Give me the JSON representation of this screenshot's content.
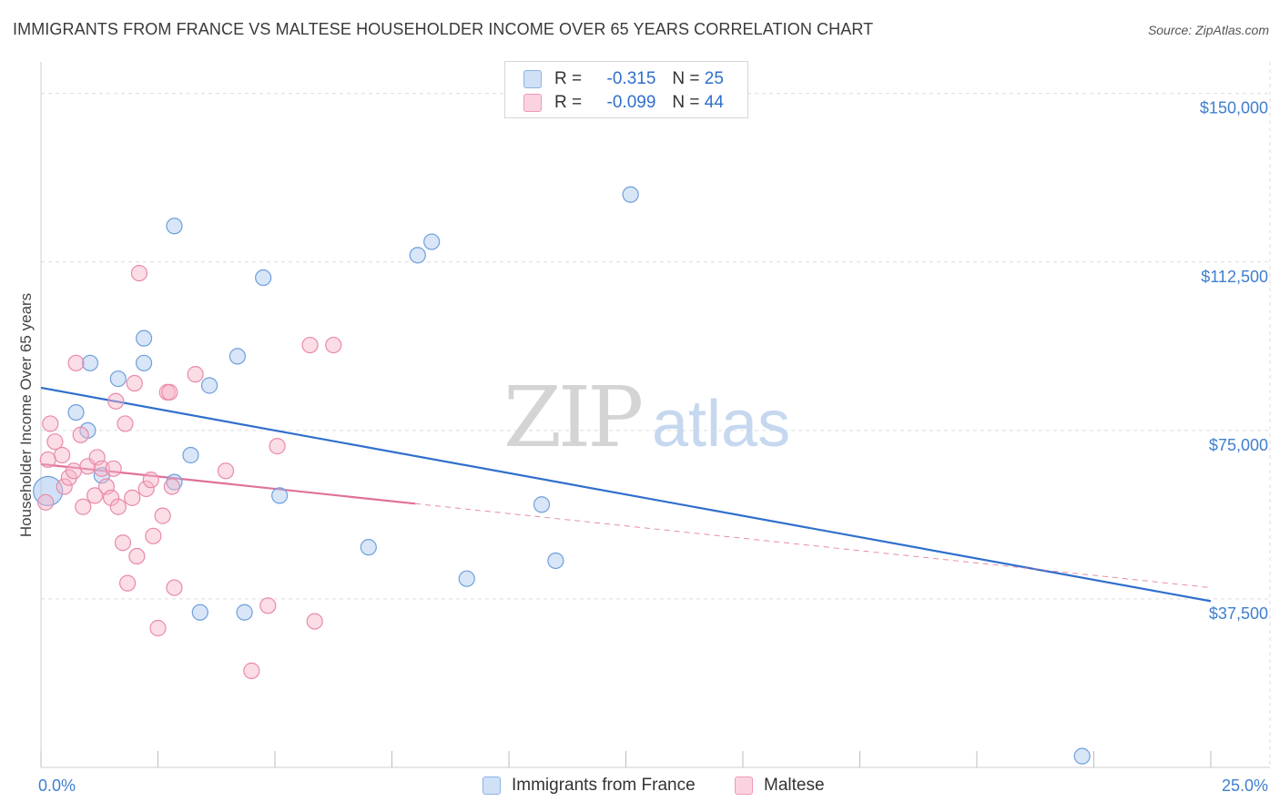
{
  "header": {
    "title": "IMMIGRANTS FROM FRANCE VS MALTESE HOUSEHOLDER INCOME OVER 65 YEARS CORRELATION CHART",
    "source": "Source: ZipAtlas.com"
  },
  "watermark": {
    "zip": "ZIP",
    "atlas": "atlas"
  },
  "legend_top": [
    {
      "r_label": "R =",
      "r_value": "-0.315",
      "n_label": "N =",
      "n_value": "25",
      "color": "#a9c8f0"
    },
    {
      "r_label": "R =",
      "r_value": "-0.099",
      "n_label": "N =",
      "n_value": "44",
      "color": "#f6b3c8"
    }
  ],
  "chart_data": {
    "type": "scatter",
    "xlabel": "",
    "ylabel": "Householder Income Over 65 years",
    "xlim": [
      0,
      25
    ],
    "ylim": [
      0,
      155000
    ],
    "x_tick_labels": [
      "0.0%",
      "25.0%"
    ],
    "y_ticks": [
      {
        "value": 37500,
        "label": "$37,500"
      },
      {
        "value": 75000,
        "label": "$75,000"
      },
      {
        "value": 112500,
        "label": "$112,500"
      },
      {
        "value": 150000,
        "label": "$150,000"
      }
    ],
    "grid": "horizontal dashed",
    "legend_position": "bottom",
    "series": [
      {
        "name": "Immigrants from France",
        "color": "#a9c8f0",
        "stroke": "#6f9fdc",
        "trend_color": "#2f6fcb",
        "trend": {
          "x_start": 0,
          "y_start": 84500,
          "x_end": 25,
          "y_end": 37000,
          "dashed_from": null
        },
        "points": [
          [
            0.15,
            61500
          ],
          [
            1.0,
            75000
          ],
          [
            0.75,
            79000
          ],
          [
            1.05,
            90000
          ],
          [
            1.65,
            86500
          ],
          [
            2.2,
            95500
          ],
          [
            2.2,
            90000
          ],
          [
            2.85,
            63500
          ],
          [
            2.85,
            120500
          ],
          [
            3.2,
            69500
          ],
          [
            3.6,
            85000
          ],
          [
            3.4,
            34500
          ],
          [
            4.2,
            91500
          ],
          [
            4.35,
            34500
          ],
          [
            4.75,
            109000
          ],
          [
            5.1,
            60500
          ],
          [
            7.0,
            49000
          ],
          [
            8.05,
            114000
          ],
          [
            8.35,
            117000
          ],
          [
            9.1,
            42000
          ],
          [
            10.7,
            58500
          ],
          [
            11.0,
            46000
          ],
          [
            12.6,
            127500
          ],
          [
            22.25,
            2500
          ],
          [
            1.3,
            65000
          ]
        ]
      },
      {
        "name": "Maltese",
        "color": "#f6b3c8",
        "stroke": "#e98aa8",
        "trend_color": "#e0709a",
        "trend": {
          "x_start": 0,
          "y_start": 67500,
          "x_end": 25,
          "y_end": 40000,
          "dashed_from": 8.0
        },
        "points": [
          [
            0.1,
            59000
          ],
          [
            0.15,
            68500
          ],
          [
            0.2,
            76500
          ],
          [
            0.3,
            72500
          ],
          [
            0.45,
            69500
          ],
          [
            0.5,
            62500
          ],
          [
            0.6,
            64500
          ],
          [
            0.7,
            66000
          ],
          [
            0.75,
            90000
          ],
          [
            0.85,
            74000
          ],
          [
            0.9,
            58000
          ],
          [
            1.0,
            67000
          ],
          [
            1.2,
            69000
          ],
          [
            1.3,
            66500
          ],
          [
            1.4,
            62500
          ],
          [
            1.5,
            60000
          ],
          [
            1.55,
            66500
          ],
          [
            1.6,
            81500
          ],
          [
            1.65,
            58000
          ],
          [
            1.75,
            50000
          ],
          [
            1.8,
            76500
          ],
          [
            1.85,
            41000
          ],
          [
            1.95,
            60000
          ],
          [
            2.0,
            85500
          ],
          [
            2.05,
            47000
          ],
          [
            2.1,
            110000
          ],
          [
            2.25,
            62000
          ],
          [
            2.35,
            64000
          ],
          [
            2.4,
            51500
          ],
          [
            2.5,
            31000
          ],
          [
            2.6,
            56000
          ],
          [
            2.7,
            83500
          ],
          [
            2.75,
            83500
          ],
          [
            2.8,
            62500
          ],
          [
            2.85,
            40000
          ],
          [
            3.3,
            87500
          ],
          [
            3.95,
            66000
          ],
          [
            4.5,
            21500
          ],
          [
            4.85,
            36000
          ],
          [
            5.05,
            71500
          ],
          [
            5.75,
            94000
          ],
          [
            5.85,
            32500
          ],
          [
            6.25,
            94000
          ],
          [
            1.15,
            60500
          ]
        ]
      }
    ]
  },
  "legend_bottom": [
    {
      "label": "Immigrants from France",
      "color": "#a9c8f0"
    },
    {
      "label": "Maltese",
      "color": "#f6b3c8"
    }
  ]
}
